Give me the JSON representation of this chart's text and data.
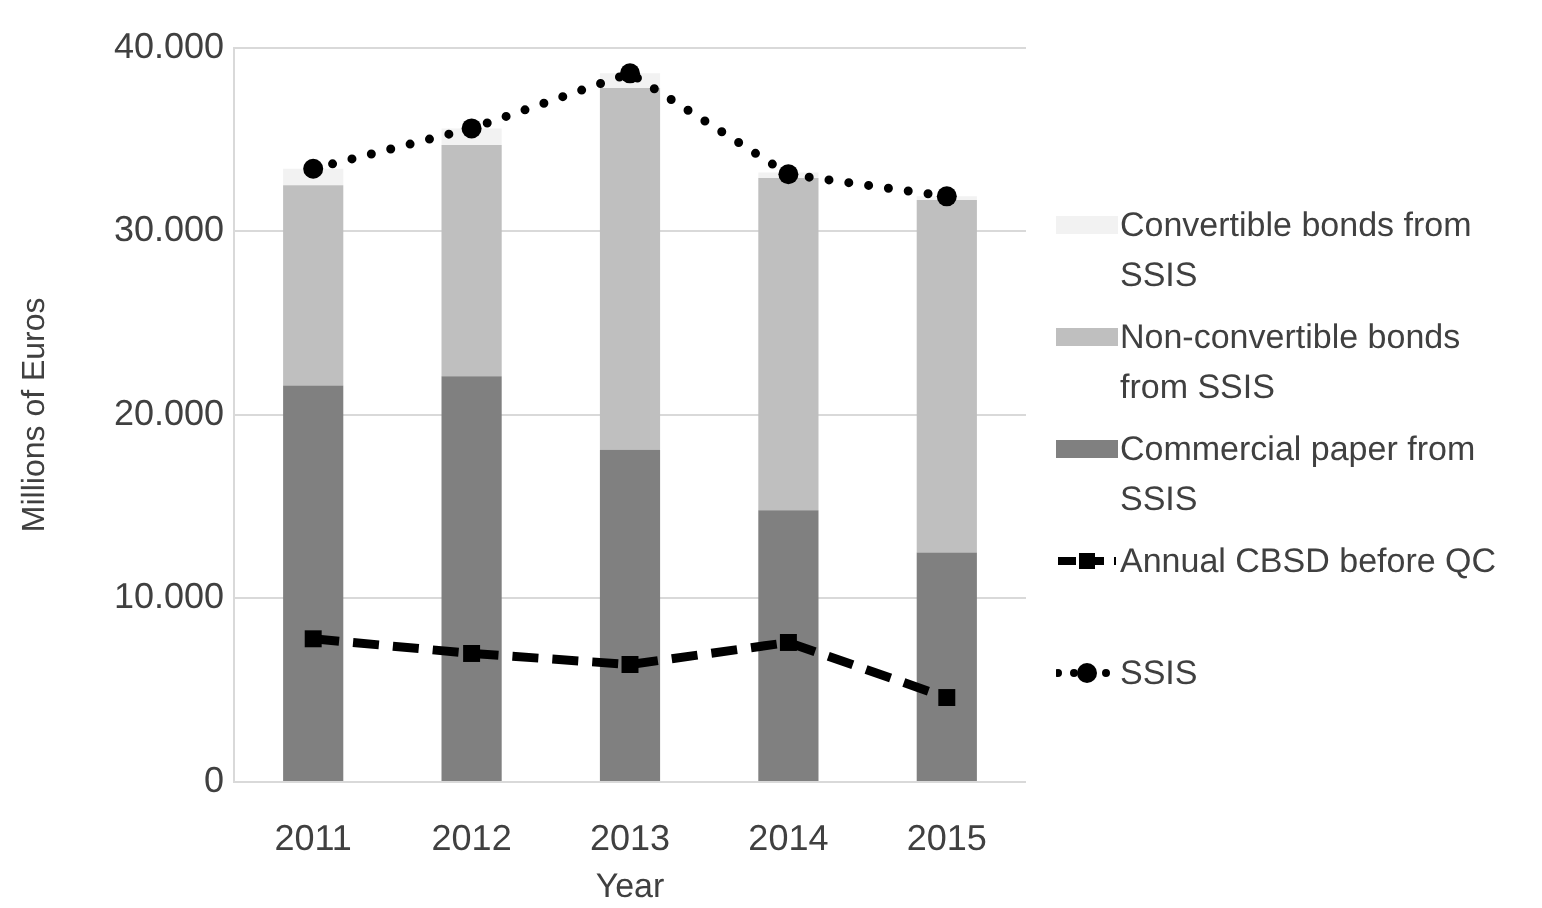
{
  "chart_data": {
    "type": "bar",
    "stacked": true,
    "xlabel": "Year",
    "ylabel": "Millions of Euros",
    "categories": [
      "2011",
      "2012",
      "2013",
      "2014",
      "2015"
    ],
    "ylim": [
      0,
      40000
    ],
    "yticks": [
      0,
      {
        "value": 10000,
        "label": "10.000"
      },
      {
        "value": 20000,
        "label": "20.000"
      },
      {
        "value": 30000,
        "label": "30.000"
      },
      {
        "value": 40000,
        "label": "40.000"
      }
    ],
    "grid": "y",
    "legend": "right",
    "series": [
      {
        "name": "Commercial paper from SSIS",
        "color": "#808080",
        "values": [
          21600,
          22100,
          18100,
          14800,
          12500
        ]
      },
      {
        "name": "Non-convertible bonds from SSIS",
        "color": "#bfbfbf",
        "values": [
          10900,
          12600,
          19700,
          18100,
          19200
        ]
      },
      {
        "name": "Convertible bonds from SSIS",
        "color": "#f2f2f2",
        "values": [
          900,
          900,
          800,
          300,
          200
        ]
      },
      {
        "name": "Annual CBSD before QC",
        "type": "line",
        "color": "#000000",
        "marker": "square",
        "line_style": "dashed",
        "values": [
          7800,
          7000,
          6400,
          7600,
          4600
        ]
      },
      {
        "name": "SSIS",
        "type": "line",
        "color": "#000000",
        "marker": "circle",
        "line_style": "dotted",
        "values": [
          33400,
          35600,
          38600,
          33100,
          31900
        ]
      }
    ]
  }
}
